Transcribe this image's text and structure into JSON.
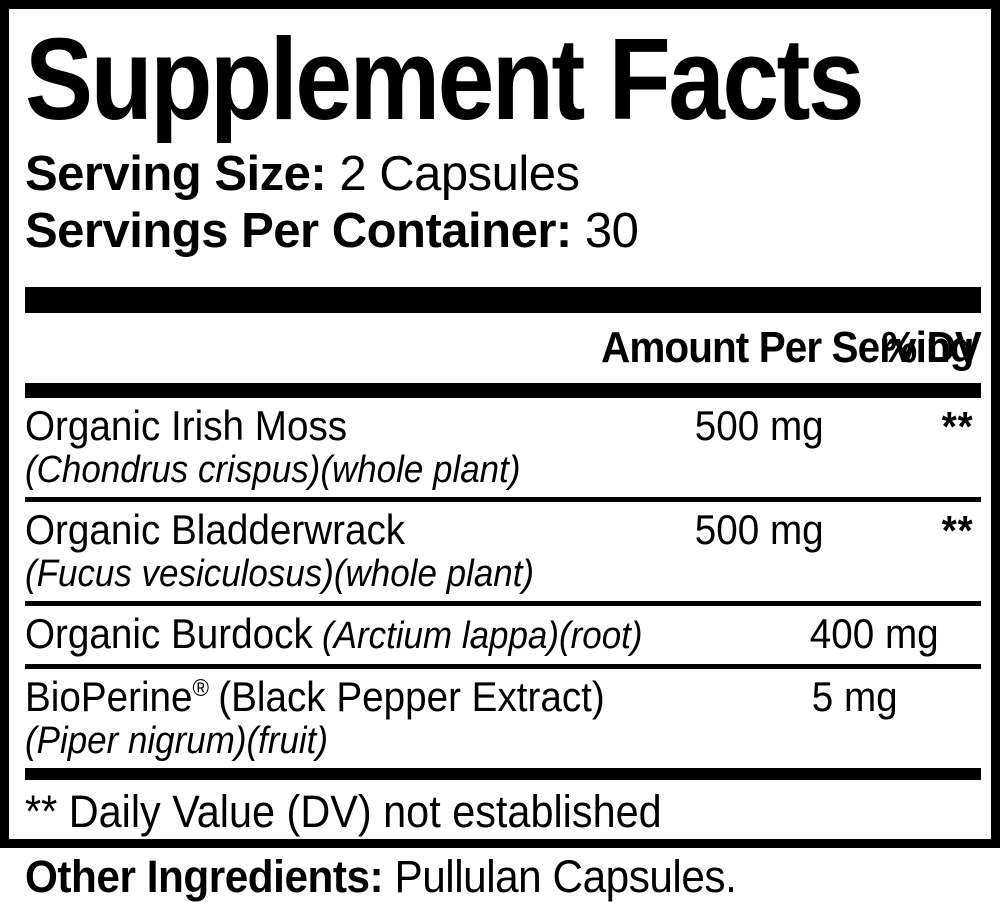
{
  "label": {
    "title": "Supplement Facts",
    "serving_size_label": "Serving Size:",
    "serving_size_value": "2 Capsules",
    "servings_per_container_label": "Servings Per Container:",
    "servings_per_container_value": "30",
    "header": {
      "amount": "Amount Per Serving",
      "dv": "% DV"
    },
    "rows": [
      {
        "name": "Organic Irish Moss",
        "sub": "(Chondrus crispus)(whole plant)",
        "amount": "500 mg",
        "dv": "**"
      },
      {
        "name": "Organic Bladderwrack",
        "sub": "(Fucus vesiculosus)(whole plant)",
        "amount": "500 mg",
        "dv": "**"
      },
      {
        "name": "Organic Burdock",
        "name_latin": "(Arctium lappa)(root)",
        "amount": "400 mg",
        "dv": "**"
      },
      {
        "name": "BioPerine",
        "trademark": "®",
        "name_suffix": "(Black Pepper Extract)",
        "sub": "(Piper nigrum)(fruit)",
        "amount": "5 mg",
        "dv": "**"
      }
    ],
    "footnote": "** Daily Value (DV) not established"
  },
  "other_ingredients": {
    "label": "Other Ingredients:",
    "value": "Pullulan Capsules."
  },
  "colors": {
    "ink": "#000000",
    "background": "#ffffff"
  }
}
